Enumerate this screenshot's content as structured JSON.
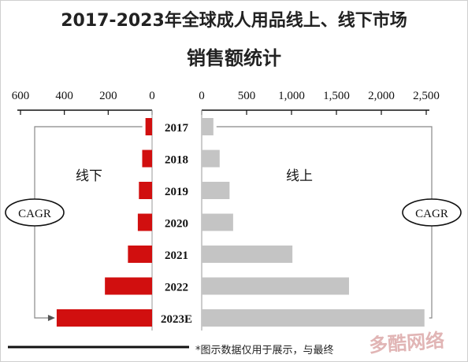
{
  "title": {
    "line1": "2017-2023年全球成人用品线上、线下市场",
    "line2": "销售额统计"
  },
  "footnote": "*图示数据仅用于展示，与最终",
  "watermark_text": "多酷网络",
  "colors": {
    "offline": "#d10f0f",
    "online": "#c4c4c4",
    "axis": "#111111",
    "bracket": "#888888"
  },
  "chart_data": [
    {
      "type": "bar",
      "orientation": "horizontal",
      "direction": "leftward",
      "categories": [
        "2017",
        "2018",
        "2019",
        "2020",
        "2021",
        "2022",
        "2023E"
      ],
      "series": [
        {
          "name": "线下",
          "values": [
            30,
            45,
            60,
            65,
            110,
            215,
            435
          ]
        }
      ],
      "xlim": [
        0,
        600
      ],
      "ticks": [
        600,
        400,
        200,
        0
      ],
      "tick_labels": [
        "600",
        "400",
        "200",
        "0"
      ],
      "series_label": "线下",
      "callout": "CAGR",
      "grid": false
    },
    {
      "type": "bar",
      "orientation": "horizontal",
      "categories": [
        "2017",
        "2018",
        "2019",
        "2020",
        "2021",
        "2022",
        "2023E"
      ],
      "series": [
        {
          "name": "线上",
          "values": [
            130,
            200,
            310,
            350,
            1010,
            1640,
            2480
          ]
        }
      ],
      "xlim": [
        0,
        2500
      ],
      "ticks": [
        0,
        500,
        1000,
        1500,
        2000,
        2500
      ],
      "tick_labels": [
        "0",
        "500",
        "1,000",
        "1,500",
        "2,000",
        "2,500"
      ],
      "series_label": "线上",
      "callout": "CAGR",
      "grid": false
    }
  ]
}
